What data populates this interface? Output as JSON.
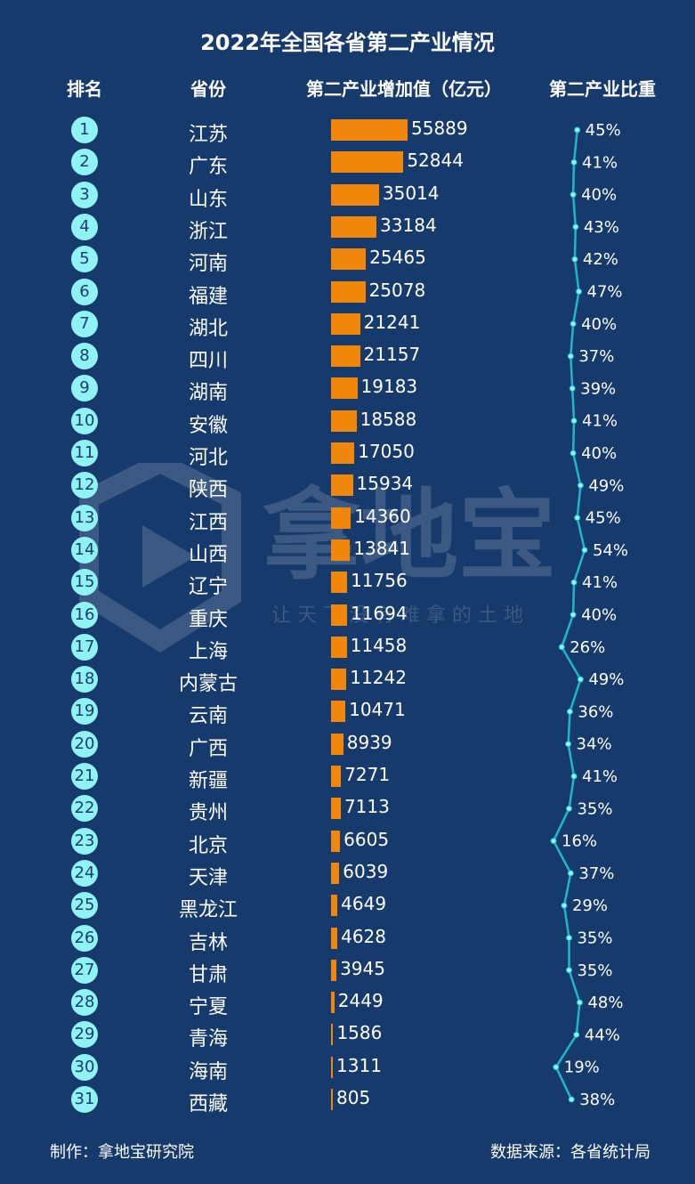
{
  "title": "2022年全国各省第二产业情况",
  "headers": {
    "rank": "排名",
    "province": "省份",
    "value": "第二产业增加值（亿元）",
    "share": "第二产业比重"
  },
  "chart_data": {
    "type": "bar",
    "title": "2022年全国各省第二产业情况",
    "categories": [
      "江苏",
      "广东",
      "山东",
      "浙江",
      "河南",
      "福建",
      "湖北",
      "四川",
      "湖南",
      "安徽",
      "河北",
      "陕西",
      "江西",
      "山西",
      "辽宁",
      "重庆",
      "上海",
      "内蒙古",
      "云南",
      "广西",
      "新疆",
      "贵州",
      "北京",
      "天津",
      "黑龙江",
      "吉林",
      "甘肃",
      "宁夏",
      "青海",
      "海南",
      "西藏"
    ],
    "ranks": [
      "1",
      "2",
      "3",
      "4",
      "5",
      "6",
      "7",
      "8",
      "9",
      "10",
      "11",
      "12",
      "13",
      "14",
      "15",
      "16",
      "17",
      "18",
      "19",
      "20",
      "21",
      "22",
      "23",
      "24",
      "25",
      "26",
      "27",
      "28",
      "29",
      "30",
      "31"
    ],
    "series": [
      {
        "name": "第二产业增加值（亿元）",
        "values": [
          55889,
          52844,
          35014,
          33184,
          25465,
          25078,
          21241,
          21157,
          19183,
          18588,
          17050,
          15934,
          14360,
          13841,
          11756,
          11694,
          11458,
          11242,
          10471,
          8939,
          7271,
          7113,
          6605,
          6039,
          4649,
          4628,
          3945,
          2449,
          1586,
          1311,
          805
        ]
      },
      {
        "name": "第二产业比重",
        "values": [
          45,
          41,
          40,
          43,
          42,
          47,
          40,
          37,
          39,
          41,
          40,
          49,
          45,
          54,
          41,
          40,
          26,
          49,
          36,
          34,
          41,
          35,
          16,
          37,
          29,
          35,
          35,
          48,
          44,
          19,
          38
        ],
        "unit": "%"
      }
    ],
    "bar_color": "#f0860a",
    "line_color": "#1fb7c9"
  },
  "watermark": {
    "brand": "拿地宝",
    "slogan": "让 天 下 没 有 难 拿 的 土 地"
  },
  "footer": {
    "left": "制作：拿地宝研究院",
    "right": "数据来源：各省统计局"
  },
  "colors": {
    "background": "#163a6b",
    "rank_badge": "#8ff3f3",
    "bar": "#f0860a",
    "line": "#1fb7c9"
  }
}
